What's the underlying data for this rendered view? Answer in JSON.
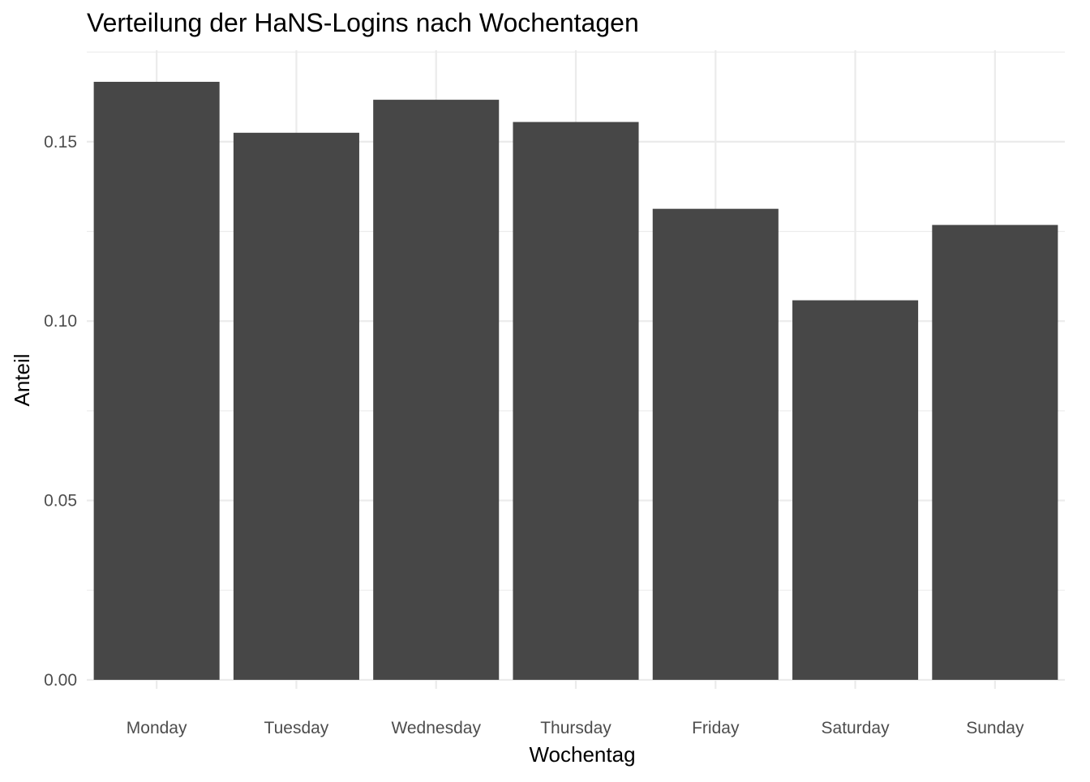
{
  "chart_data": {
    "type": "bar",
    "title": "Verteilung der HaNS-Logins nach Wochentagen",
    "xlabel": "Wochentag",
    "ylabel": "Anteil",
    "categories": [
      "Monday",
      "Tuesday",
      "Wednesday",
      "Thursday",
      "Friday",
      "Saturday",
      "Sunday"
    ],
    "values": [
      0.1667,
      0.1525,
      0.1617,
      0.1555,
      0.1313,
      0.1058,
      0.1268
    ],
    "ylim": [
      -0.0025,
      0.1755
    ],
    "yticks": [
      0.0,
      0.05,
      0.1,
      0.15
    ],
    "ytick_labels": [
      "0.00",
      "0.05",
      "0.10",
      "0.15"
    ],
    "grid": true,
    "bar_color": "#474747",
    "grid_color": "#ebebeb",
    "background": "#ffffff"
  }
}
